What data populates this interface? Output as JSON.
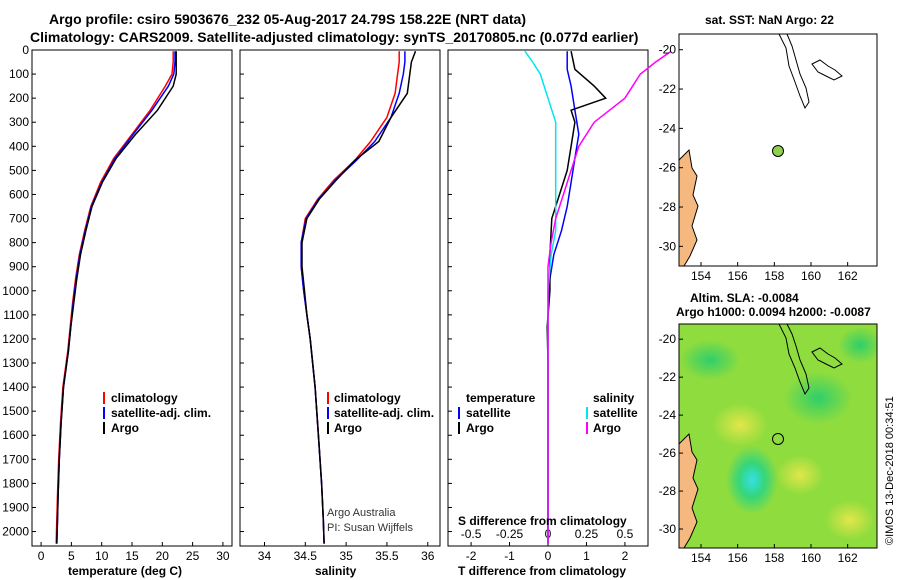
{
  "header": {
    "line1": "Argo profile: csiro 5903676_232 05-Aug-2017 24.79S 158.22E (NRT data)",
    "line2": "Climatology: CARS2009. Satellite-adjusted climatology: synTS_20170805.nc (0.077d earlier)"
  },
  "colors": {
    "climatology": "#ff0000",
    "satellite": "#0000ff",
    "argo": "#000000",
    "sat_s": "#00e5ee",
    "argo_s": "#ff00ff",
    "land": "#f5b980"
  },
  "watermark": "©IMOS 13-Dec-2018 00:34:51",
  "chart_data": [
    {
      "type": "line",
      "xlabel": "temperature (deg C)",
      "ylabel": "",
      "xlim": [
        -1.5,
        31.5
      ],
      "ylim": [
        2060,
        0
      ],
      "xticks": [
        0,
        5,
        10,
        15,
        20,
        25,
        30
      ],
      "yticks": [
        0,
        100,
        200,
        300,
        400,
        500,
        600,
        700,
        800,
        900,
        1000,
        1100,
        1200,
        1300,
        1400,
        1500,
        1600,
        1700,
        1800,
        1900,
        2000
      ],
      "legend": [
        "climatology",
        "satellite-adj. clim.",
        "Argo"
      ],
      "series": [
        {
          "name": "climatology",
          "color": "#ff0000",
          "x": [
            21.8,
            21.8,
            21.6,
            20.5,
            18,
            15,
            12,
            9.8,
            8.2,
            7.2,
            6.3,
            5.7,
            5.2,
            4.8,
            4.4,
            3.6,
            3.2,
            2.9,
            2.7,
            2.6,
            2.5
          ],
          "y": [
            5,
            50,
            100,
            150,
            250,
            350,
            450,
            550,
            650,
            750,
            850,
            950,
            1050,
            1150,
            1250,
            1400,
            1550,
            1700,
            1850,
            1950,
            2050
          ]
        },
        {
          "name": "satellite-adj. clim.",
          "color": "#0000ff",
          "x": [
            22.1,
            22.1,
            21.9,
            21,
            18.3,
            15.2,
            12.2,
            10,
            8.3,
            7.3,
            6.4,
            5.8,
            5.3,
            4.9,
            4.5,
            3.7,
            3.3,
            3.0,
            2.8,
            2.7,
            2.6
          ],
          "y": [
            5,
            50,
            100,
            150,
            250,
            350,
            450,
            550,
            650,
            750,
            850,
            950,
            1050,
            1150,
            1250,
            1400,
            1550,
            1700,
            1850,
            1950,
            2050
          ]
        },
        {
          "name": "Argo",
          "color": "#000000",
          "x": [
            22.3,
            22.3,
            22.3,
            21.8,
            19.2,
            15.6,
            12.4,
            10.1,
            8.4,
            7.4,
            6.5,
            5.9,
            5.4,
            4.9,
            4.5,
            3.7,
            3.3,
            3.0,
            2.8,
            2.7,
            2.6
          ],
          "y": [
            5,
            50,
            100,
            150,
            250,
            350,
            450,
            550,
            650,
            750,
            850,
            950,
            1050,
            1150,
            1250,
            1400,
            1550,
            1700,
            1850,
            1950,
            2050
          ]
        }
      ]
    },
    {
      "type": "line",
      "xlabel": "salinity",
      "xlim": [
        33.7,
        36.15
      ],
      "ylim": [
        2060,
        0
      ],
      "xticks": [
        34,
        34.5,
        35,
        35.5,
        36
      ],
      "legend": [
        "climatology",
        "satellite-adj. clim.",
        "Argo"
      ],
      "annotation": [
        "Argo Australia",
        "PI: Susan Wijffels"
      ],
      "series": [
        {
          "name": "climatology",
          "color": "#ff0000",
          "x": [
            35.65,
            35.65,
            35.63,
            35.6,
            35.5,
            35.3,
            35.1,
            34.85,
            34.65,
            34.5,
            34.45,
            34.45,
            34.48,
            34.52,
            34.56,
            34.62,
            34.66,
            34.7,
            34.72,
            34.73
          ],
          "y": [
            5,
            50,
            100,
            180,
            280,
            380,
            460,
            540,
            620,
            700,
            800,
            900,
            1000,
            1100,
            1200,
            1400,
            1600,
            1800,
            1950,
            2050
          ]
        },
        {
          "name": "satellite-adj. clim.",
          "color": "#0000ff",
          "x": [
            35.72,
            35.72,
            35.7,
            35.65,
            35.55,
            35.35,
            35.12,
            34.87,
            34.66,
            34.51,
            34.45,
            34.45,
            34.48,
            34.52,
            34.56,
            34.62,
            34.66,
            34.7,
            34.72,
            34.73
          ],
          "y": [
            5,
            50,
            100,
            180,
            280,
            380,
            460,
            540,
            620,
            700,
            800,
            900,
            1000,
            1100,
            1200,
            1400,
            1600,
            1800,
            1950,
            2050
          ]
        },
        {
          "name": "Argo",
          "color": "#000000",
          "x": [
            35.85,
            35.8,
            35.78,
            35.75,
            35.55,
            35.4,
            35.1,
            34.88,
            34.67,
            34.52,
            34.46,
            34.46,
            34.49,
            34.52,
            34.56,
            34.62,
            34.66,
            34.7,
            34.72,
            34.73
          ],
          "y": [
            5,
            50,
            100,
            180,
            280,
            380,
            460,
            540,
            620,
            700,
            800,
            900,
            1000,
            1100,
            1200,
            1400,
            1600,
            1800,
            1950,
            2050
          ]
        }
      ]
    },
    {
      "type": "line",
      "xlabel": "T difference from climatology",
      "xlabel2": "S difference from climatology",
      "xlim": [
        -2.6,
        2.6
      ],
      "ylim": [
        2060,
        0
      ],
      "xticks": [
        -2,
        -1,
        0,
        1,
        2
      ],
      "x2ticks": [
        "-0.5",
        "-0.25",
        "0",
        "0.25",
        "0.5"
      ],
      "legend_t_title": "temperature",
      "legend_s_title": "salinity",
      "legend_t": [
        "satellite",
        "Argo"
      ],
      "legend_s": [
        "satellite",
        "Argo"
      ],
      "series": [
        {
          "name": "T satellite",
          "color": "#0000ff",
          "x": [
            0.5,
            0.5,
            0.6,
            0.7,
            0.8,
            0.7,
            0.6,
            0.5,
            0.35,
            0.15,
            0.05,
            0,
            0,
            0,
            0,
            0,
            0,
            0
          ],
          "y": [
            5,
            80,
            150,
            250,
            350,
            450,
            550,
            650,
            750,
            850,
            950,
            1100,
            1300,
            1500,
            1700,
            1800,
            1900,
            2050
          ]
        },
        {
          "name": "T Argo",
          "color": "#000000",
          "x": [
            0.6,
            0.7,
            1.2,
            1.5,
            0.6,
            0.7,
            0.6,
            0.5,
            0.3,
            0.1,
            0.05,
            0.05,
            -0.02,
            0,
            0,
            0,
            0,
            0
          ],
          "y": [
            5,
            80,
            150,
            200,
            250,
            300,
            400,
            500,
            600,
            700,
            850,
            1000,
            1150,
            1300,
            1500,
            1700,
            1900,
            2050
          ]
        },
        {
          "name": "S satellite",
          "color": "#00e5ee",
          "x": [
            -0.15,
            -0.1,
            -0.05,
            0,
            0.05,
            0.05,
            0.05,
            0.05,
            0.05,
            0.05,
            0.02,
            0,
            0,
            0,
            0,
            0,
            0
          ],
          "y": [
            5,
            50,
            100,
            200,
            300,
            400,
            500,
            600,
            700,
            750,
            850,
            1000,
            1200,
            1400,
            1600,
            1800,
            2050
          ]
        },
        {
          "name": "S Argo",
          "color": "#ff00ff",
          "x": [
            0.8,
            0.7,
            0.6,
            0.5,
            0.3,
            0.2,
            0.15,
            0.1,
            0.05,
            0.02,
            0,
            0,
            0,
            0,
            0,
            0
          ],
          "y": [
            5,
            50,
            100,
            200,
            300,
            400,
            500,
            600,
            700,
            800,
            900,
            1000,
            1200,
            1500,
            1800,
            2050
          ]
        }
      ]
    }
  ],
  "maps": {
    "sst_title": "sat. SST: NaN Argo: 22",
    "sla_title1": "Altim. SLA: -0.0084",
    "sla_title2": "Argo h1000: 0.0094 h2000: -0.0087",
    "lon_ticks": [
      154,
      156,
      158,
      160,
      162
    ],
    "lat_ticks": [
      -20,
      -22,
      -24,
      -26,
      -28,
      -30
    ],
    "lon_range": [
      152.8,
      163.6
    ],
    "lat_range": [
      -31,
      -19.2
    ],
    "float_lon": 158.2,
    "float_lat": -24.8
  }
}
